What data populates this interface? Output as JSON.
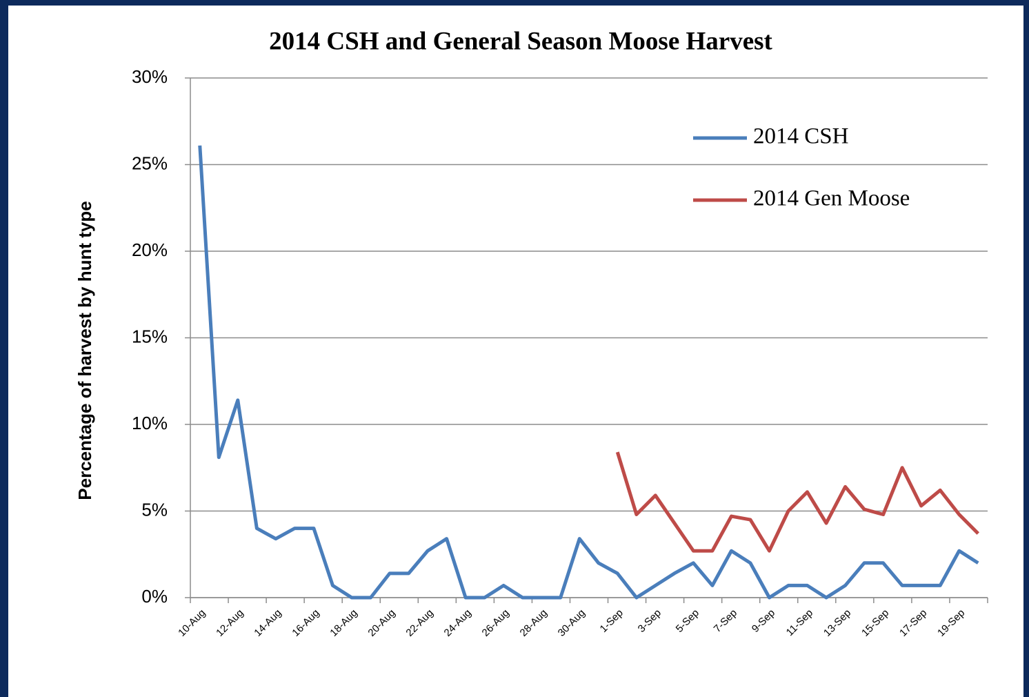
{
  "chart_data": {
    "type": "line",
    "title": "2014 CSH and General Season Moose Harvest",
    "y_axis_label": "Percentage of harvest by hunt type",
    "categories": [
      "10-Aug",
      null,
      "12-Aug",
      null,
      "14-Aug",
      null,
      "16-Aug",
      null,
      "18-Aug",
      null,
      "20-Aug",
      null,
      "22-Aug",
      null,
      "24-Aug",
      null,
      "26-Aug",
      null,
      "28-Aug",
      null,
      "30-Aug",
      null,
      "1-Sep",
      null,
      "3-Sep",
      null,
      "5-Sep",
      null,
      "7-Sep",
      null,
      "9-Sep",
      null,
      "11-Sep",
      null,
      "13-Sep",
      null,
      "15-Sep",
      null,
      "17-Sep",
      null,
      "19-Sep",
      null
    ],
    "series": [
      {
        "name": "2014 CSH",
        "color": "#4a7ebb",
        "values": [
          26.1,
          8.1,
          11.4,
          4.0,
          3.4,
          4.0,
          4.0,
          0.7,
          0,
          0,
          1.4,
          1.4,
          2.7,
          3.4,
          0,
          0,
          0.7,
          0,
          0,
          0,
          3.4,
          2.0,
          1.4,
          0,
          0.7,
          1.4,
          2.0,
          0.7,
          2.7,
          2.0,
          0,
          0.7,
          0.7,
          0,
          0.7,
          2.0,
          2.0,
          0.7,
          0.7,
          0.7,
          2.7,
          2.0
        ]
      },
      {
        "name": "2014 Gen Moose",
        "color": "#be4b48",
        "values": [
          null,
          null,
          null,
          null,
          null,
          null,
          null,
          null,
          null,
          null,
          null,
          null,
          null,
          null,
          null,
          null,
          null,
          null,
          null,
          null,
          null,
          null,
          8.4,
          4.8,
          5.9,
          4.3,
          2.7,
          2.7,
          4.7,
          4.5,
          2.7,
          5.0,
          6.1,
          4.3,
          6.4,
          5.1,
          4.8,
          7.5,
          5.3,
          6.2,
          4.8,
          3.7
        ]
      }
    ],
    "ylim": [
      0,
      30
    ],
    "yticks": [
      {
        "value": 0,
        "label": "0%"
      },
      {
        "value": 5,
        "label": "5%"
      },
      {
        "value": 10,
        "label": "10%"
      },
      {
        "value": 15,
        "label": "15%"
      },
      {
        "value": 20,
        "label": "20%"
      },
      {
        "value": 25,
        "label": "25%"
      },
      {
        "value": 30,
        "label": "30%"
      }
    ],
    "grid": true,
    "legend": "top-right"
  }
}
